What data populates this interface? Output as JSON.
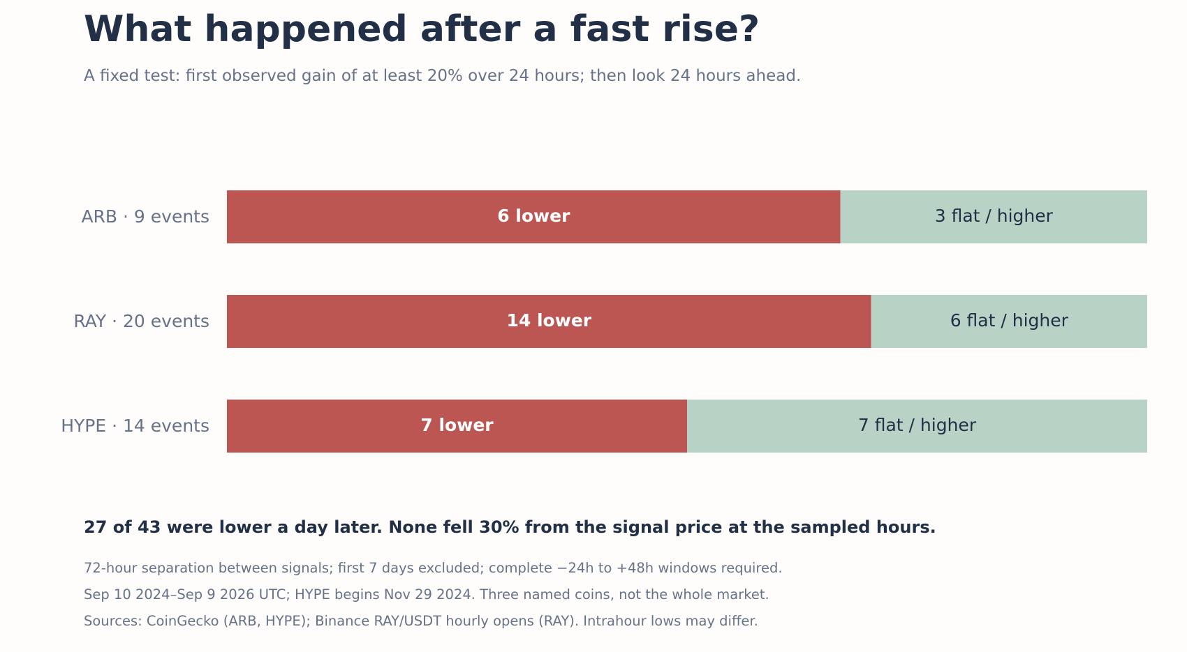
{
  "title": "What happened after a fast rise?",
  "subtitle": "A fixed test: first observed gain of at least 20% over 24 hours; then look 24 hours ahead.",
  "summary": "27 of 43 were lower a day later. None fell 30% from the signal price at the sampled hours.",
  "notes": [
    "72-hour separation between signals; first 7 days excluded; complete −24h to +48h windows required.",
    "Sep 10 2024–Sep 9 2026 UTC; HYPE begins Nov 29 2024. Three named coins, not the whole market.",
    "Sources: CoinGecko (ARB, HYPE); Binance RAY/USDT hourly opens (RAY). Intrahour lows may differ."
  ],
  "chart_data": {
    "type": "bar",
    "stacked": true,
    "normalized": true,
    "orientation": "horizontal",
    "categories": [
      "ARB · 9 events",
      "RAY · 20 events",
      "HYPE · 14 events"
    ],
    "series": [
      {
        "key": "lower",
        "color": "#bc5653",
        "values": [
          6,
          14,
          7
        ],
        "labels": [
          "6 lower",
          "14 lower",
          "7 lower"
        ]
      },
      {
        "key": "flat_higher",
        "color": "#b8d3c6",
        "values": [
          3,
          6,
          7
        ],
        "labels": [
          "3 flat / higher",
          "6 flat / higher",
          "7 flat / higher"
        ]
      }
    ]
  }
}
